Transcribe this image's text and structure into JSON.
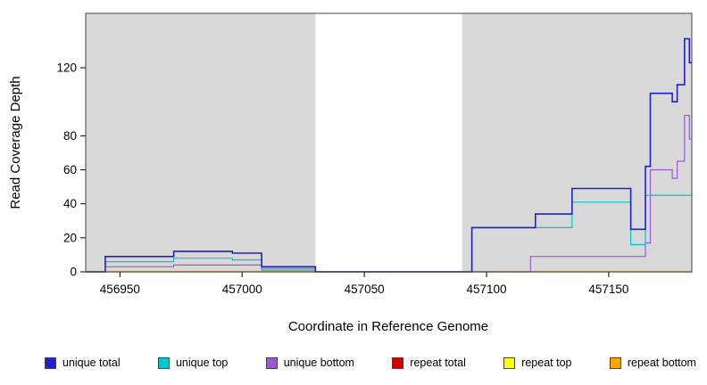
{
  "chart_data": {
    "type": "line",
    "style": "step",
    "title": "",
    "xlabel": "Coordinate in Reference Genome",
    "ylabel": "Read Coverage Depth",
    "xlim": [
      456936,
      457184
    ],
    "ylim": [
      0,
      152
    ],
    "x_ticks": [
      456950,
      457000,
      457050,
      457100,
      457150
    ],
    "y_ticks": [
      0,
      20,
      40,
      60,
      80,
      120
    ],
    "grid": false,
    "plot_bg": "#D9D9D9",
    "mask_region": {
      "from": 457030,
      "to": 457090,
      "color": "#FFFFFF"
    },
    "legend_position": "bottom",
    "draw_order": [
      3,
      4,
      5,
      2,
      1,
      0
    ],
    "series": [
      {
        "name": "unique total",
        "color": "#2020CC",
        "width": 1.6,
        "steps": [
          [
            456936,
            0
          ],
          [
            456944,
            9
          ],
          [
            456972,
            12
          ],
          [
            456996,
            11
          ],
          [
            457008,
            3
          ],
          [
            457030,
            0
          ],
          [
            457094,
            26
          ],
          [
            457120,
            34
          ],
          [
            457135,
            49
          ],
          [
            457159,
            25
          ],
          [
            457165,
            62
          ],
          [
            457167,
            105
          ],
          [
            457176,
            100
          ],
          [
            457178,
            110
          ],
          [
            457181,
            137
          ],
          [
            457183,
            123
          ],
          [
            457184,
            123
          ]
        ]
      },
      {
        "name": "unique top",
        "color": "#00C5CD",
        "width": 1.2,
        "steps": [
          [
            456936,
            0
          ],
          [
            456944,
            6
          ],
          [
            456972,
            8
          ],
          [
            456996,
            7
          ],
          [
            457008,
            1
          ],
          [
            457030,
            0
          ],
          [
            457094,
            26
          ],
          [
            457135,
            41
          ],
          [
            457159,
            16
          ],
          [
            457165,
            45
          ],
          [
            457184,
            45
          ]
        ]
      },
      {
        "name": "unique bottom",
        "color": "#9A5AD2",
        "width": 1.2,
        "steps": [
          [
            456936,
            0
          ],
          [
            456944,
            3
          ],
          [
            456972,
            4
          ],
          [
            456996,
            4
          ],
          [
            457008,
            2
          ],
          [
            457030,
            0
          ],
          [
            457118,
            9
          ],
          [
            457165,
            17
          ],
          [
            457167,
            60
          ],
          [
            457176,
            55
          ],
          [
            457178,
            65
          ],
          [
            457181,
            92
          ],
          [
            457183,
            78
          ],
          [
            457184,
            78
          ]
        ]
      },
      {
        "name": "repeat total",
        "color": "#CC0000",
        "width": 1.2,
        "steps": [
          [
            456936,
            0
          ],
          [
            457184,
            0
          ]
        ]
      },
      {
        "name": "repeat top",
        "color": "#FFFF00",
        "width": 1.2,
        "steps": [
          [
            456936,
            0
          ],
          [
            457184,
            0
          ]
        ]
      },
      {
        "name": "repeat bottom",
        "color": "#FFA500",
        "width": 1.2,
        "steps": [
          [
            456936,
            0
          ],
          [
            457184,
            0
          ]
        ]
      }
    ]
  }
}
